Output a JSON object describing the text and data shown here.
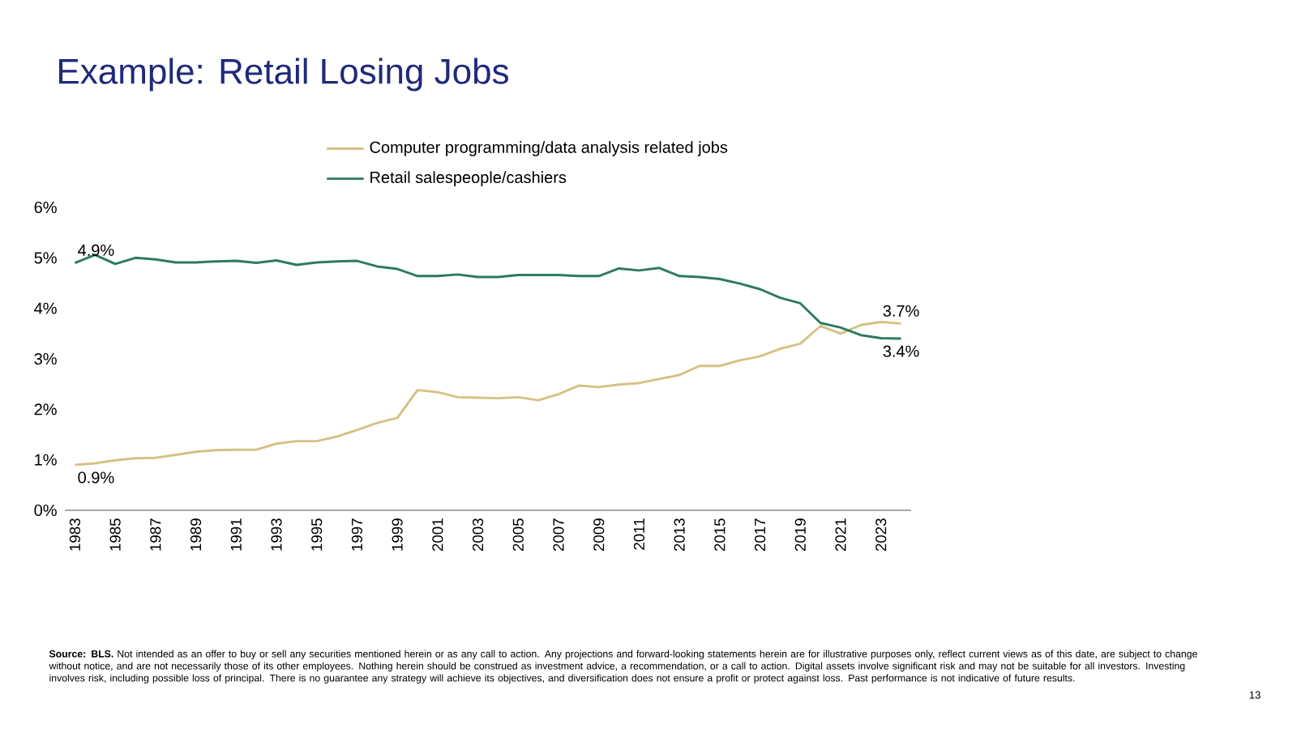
{
  "chart_data": {
    "type": "line",
    "title": "Example: Retail Losing Jobs",
    "x": [
      1983,
      1984,
      1985,
      1986,
      1987,
      1988,
      1989,
      1990,
      1991,
      1992,
      1993,
      1994,
      1995,
      1996,
      1997,
      1998,
      1999,
      2000,
      2001,
      2002,
      2003,
      2004,
      2005,
      2006,
      2007,
      2008,
      2009,
      2010,
      2011,
      2012,
      2013,
      2014,
      2015,
      2016,
      2017,
      2018,
      2019,
      2020,
      2021,
      2022,
      2023,
      2024
    ],
    "series": [
      {
        "name": "Computer programming/data analysis related jobs",
        "color": "#d6c184",
        "values": [
          0.9,
          0.93,
          0.99,
          1.03,
          1.04,
          1.1,
          1.16,
          1.19,
          1.2,
          1.2,
          1.32,
          1.37,
          1.37,
          1.46,
          1.59,
          1.73,
          1.83,
          2.38,
          2.34,
          2.24,
          2.23,
          2.22,
          2.24,
          2.18,
          2.3,
          2.47,
          2.44,
          2.49,
          2.52,
          2.6,
          2.68,
          2.86,
          2.86,
          2.97,
          3.05,
          3.2,
          3.3,
          3.65,
          3.5,
          3.67,
          3.73,
          3.7
        ],
        "value_labels": [
          "0.9%",
          null,
          null,
          null,
          null,
          null,
          null,
          null,
          null,
          null,
          null,
          null,
          null,
          null,
          null,
          null,
          null,
          null,
          null,
          null,
          null,
          null,
          null,
          null,
          null,
          null,
          null,
          null,
          null,
          null,
          null,
          null,
          null,
          null,
          null,
          null,
          null,
          null,
          null,
          null,
          null,
          "3.7%"
        ]
      },
      {
        "name": "Retail salespeople/cashiers",
        "color": "#2e7a5e",
        "values": [
          4.9,
          5.06,
          4.88,
          5.0,
          4.97,
          4.91,
          4.91,
          4.93,
          4.94,
          4.9,
          4.95,
          4.86,
          4.91,
          4.93,
          4.94,
          4.83,
          4.78,
          4.64,
          4.64,
          4.67,
          4.62,
          4.62,
          4.66,
          4.66,
          4.66,
          4.64,
          4.64,
          4.79,
          4.75,
          4.8,
          4.64,
          4.62,
          4.58,
          4.49,
          4.38,
          4.21,
          4.1,
          3.71,
          3.62,
          3.47,
          3.41,
          3.4
        ],
        "value_labels": [
          "4.9%",
          null,
          null,
          null,
          null,
          null,
          null,
          null,
          null,
          null,
          null,
          null,
          null,
          null,
          null,
          null,
          null,
          null,
          null,
          null,
          null,
          null,
          null,
          null,
          null,
          null,
          null,
          null,
          null,
          null,
          null,
          null,
          null,
          null,
          null,
          null,
          null,
          null,
          null,
          null,
          null,
          "3.4%"
        ]
      }
    ],
    "xlim": [
      1982.5,
      2024.5
    ],
    "xticks": [
      1983,
      1985,
      1987,
      1989,
      1991,
      1993,
      1995,
      1997,
      1999,
      2001,
      2003,
      2005,
      2007,
      2009,
      2011,
      2013,
      2015,
      2017,
      2019,
      2021,
      2023
    ],
    "ylim": [
      0,
      6
    ],
    "yticks": [
      {
        "value": 0,
        "label": "0%"
      },
      {
        "value": 1,
        "label": "1%"
      },
      {
        "value": 2,
        "label": "2%"
      },
      {
        "value": 3,
        "label": "3%"
      },
      {
        "value": 4,
        "label": "4%"
      },
      {
        "value": 5,
        "label": "5%"
      },
      {
        "value": 6,
        "label": "6%"
      }
    ],
    "legend": "top",
    "grid": false,
    "line_style": "solid",
    "annotations": [
      "**Source: BLS.** Not intended as an offer to buy or sell any securities mentioned herein or as any call to action. Any projections and forward-looking statements herein are for illustrative purposes only, reflect current views as of this date, are subject to change without notice, and are not necessarily those of its other employees. Nothing herein should be construed as investment advice, a recommendation, or a call to action. Digital assets involve significant risk and may not be suitable for all investors. Investing involves risk, including possible loss of principal. There is no guarantee any strategy will achieve its objectives, and diversification does not ensure a profit or protect against loss. Past performance is not indicative of future results.",
      "13"
    ]
  }
}
